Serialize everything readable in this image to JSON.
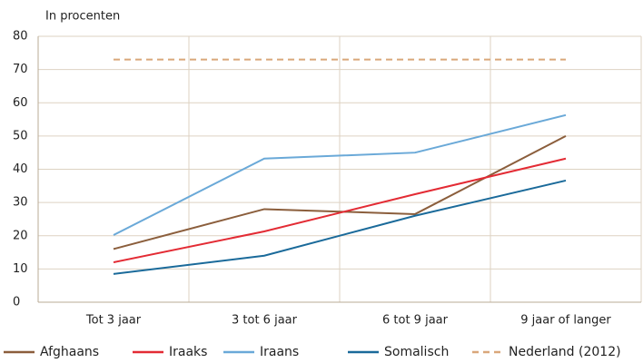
{
  "chart_data": {
    "type": "line",
    "y_label": "In procenten",
    "categories": [
      "Tot 3 jaar",
      "3 tot 6 jaar",
      "6 tot 9 jaar",
      "9 jaar of langer"
    ],
    "series": [
      {
        "name": "Afghaans",
        "color": "#8b5e3c",
        "values": [
          16,
          28,
          26.5,
          50
        ]
      },
      {
        "name": "Iraaks",
        "color": "#e32b34",
        "values": [
          12,
          21.3,
          32.5,
          43.2
        ]
      },
      {
        "name": "Iraans",
        "color": "#6aa9d8",
        "values": [
          20.2,
          43.2,
          45,
          56.3
        ]
      },
      {
        "name": "Somalisch",
        "color": "#1a6a9a",
        "values": [
          8.5,
          14,
          26,
          36.6
        ]
      },
      {
        "name": "Nederland (2012)",
        "color": "#d9a77a",
        "style": "dashed",
        "values": [
          73,
          73,
          73,
          73
        ]
      }
    ],
    "ylim": [
      0,
      80
    ],
    "yticks": [
      0,
      10,
      20,
      30,
      40,
      50,
      60,
      70,
      80
    ],
    "grid": true
  }
}
